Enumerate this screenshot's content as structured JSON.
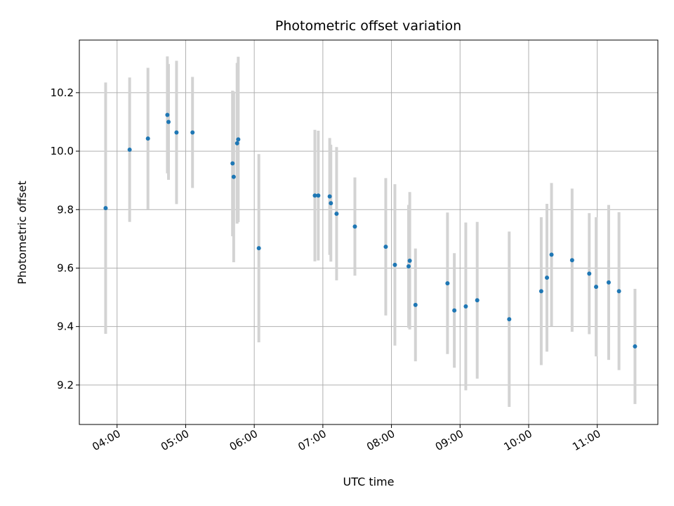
{
  "chart_data": {
    "type": "scatter",
    "title": "Photometric offset variation",
    "xlabel": "UTC time",
    "ylabel": "Photometric offset",
    "grid": true,
    "x_ticks": [
      "04:00",
      "05:00",
      "06:00",
      "07:00",
      "08:00",
      "09:00",
      "10:00",
      "11:00"
    ],
    "y_ticks": [
      "9.2",
      "9.4",
      "9.6",
      "9.8",
      "10.0",
      "10.2"
    ],
    "xlim": [
      "03:27",
      "11:53"
    ],
    "ylim": [
      9.065,
      10.38
    ],
    "colors": {
      "point": "#1f77b4",
      "errorbar": "#d3d3d3",
      "grid": "#b0b0b0"
    },
    "points": [
      {
        "x": "03:50",
        "y": 9.805,
        "err": 0.43
      },
      {
        "x": "04:11",
        "y": 10.005,
        "err": 0.247
      },
      {
        "x": "04:27",
        "y": 10.043,
        "err": 0.242
      },
      {
        "x": "04:44",
        "y": 10.124,
        "err": 0.2
      },
      {
        "x": "04:45",
        "y": 10.1,
        "err": 0.198
      },
      {
        "x": "04:52",
        "y": 10.064,
        "err": 0.245
      },
      {
        "x": "05:06",
        "y": 10.064,
        "err": 0.19
      },
      {
        "x": "05:41",
        "y": 9.958,
        "err": 0.249
      },
      {
        "x": "05:42",
        "y": 9.912,
        "err": 0.292
      },
      {
        "x": "05:45",
        "y": 10.027,
        "err": 0.275
      },
      {
        "x": "05:46",
        "y": 10.04,
        "err": 0.283
      },
      {
        "x": "06:04",
        "y": 9.668,
        "err": 0.322
      },
      {
        "x": "06:53",
        "y": 9.848,
        "err": 0.225
      },
      {
        "x": "06:56",
        "y": 9.848,
        "err": 0.222
      },
      {
        "x": "07:06",
        "y": 9.845,
        "err": 0.2
      },
      {
        "x": "07:07",
        "y": 9.822,
        "err": 0.2
      },
      {
        "x": "07:12",
        "y": 9.786,
        "err": 0.228
      },
      {
        "x": "07:28",
        "y": 9.742,
        "err": 0.168
      },
      {
        "x": "07:55",
        "y": 9.673,
        "err": 0.235
      },
      {
        "x": "08:03",
        "y": 9.611,
        "err": 0.276
      },
      {
        "x": "08:15",
        "y": 9.606,
        "err": 0.21
      },
      {
        "x": "08:16",
        "y": 9.625,
        "err": 0.235
      },
      {
        "x": "08:21",
        "y": 9.474,
        "err": 0.193
      },
      {
        "x": "08:49",
        "y": 9.548,
        "err": 0.242
      },
      {
        "x": "08:55",
        "y": 9.455,
        "err": 0.196
      },
      {
        "x": "09:05",
        "y": 9.469,
        "err": 0.287
      },
      {
        "x": "09:15",
        "y": 9.49,
        "err": 0.268
      },
      {
        "x": "09:43",
        "y": 9.425,
        "err": 0.3
      },
      {
        "x": "10:11",
        "y": 9.521,
        "err": 0.253
      },
      {
        "x": "10:16",
        "y": 9.567,
        "err": 0.253
      },
      {
        "x": "10:20",
        "y": 9.646,
        "err": 0.245
      },
      {
        "x": "10:38",
        "y": 9.627,
        "err": 0.245
      },
      {
        "x": "10:53",
        "y": 9.581,
        "err": 0.207
      },
      {
        "x": "10:59",
        "y": 9.536,
        "err": 0.238
      },
      {
        "x": "11:10",
        "y": 9.551,
        "err": 0.265
      },
      {
        "x": "11:19",
        "y": 9.521,
        "err": 0.27
      },
      {
        "x": "11:33",
        "y": 9.332,
        "err": 0.197
      }
    ]
  }
}
